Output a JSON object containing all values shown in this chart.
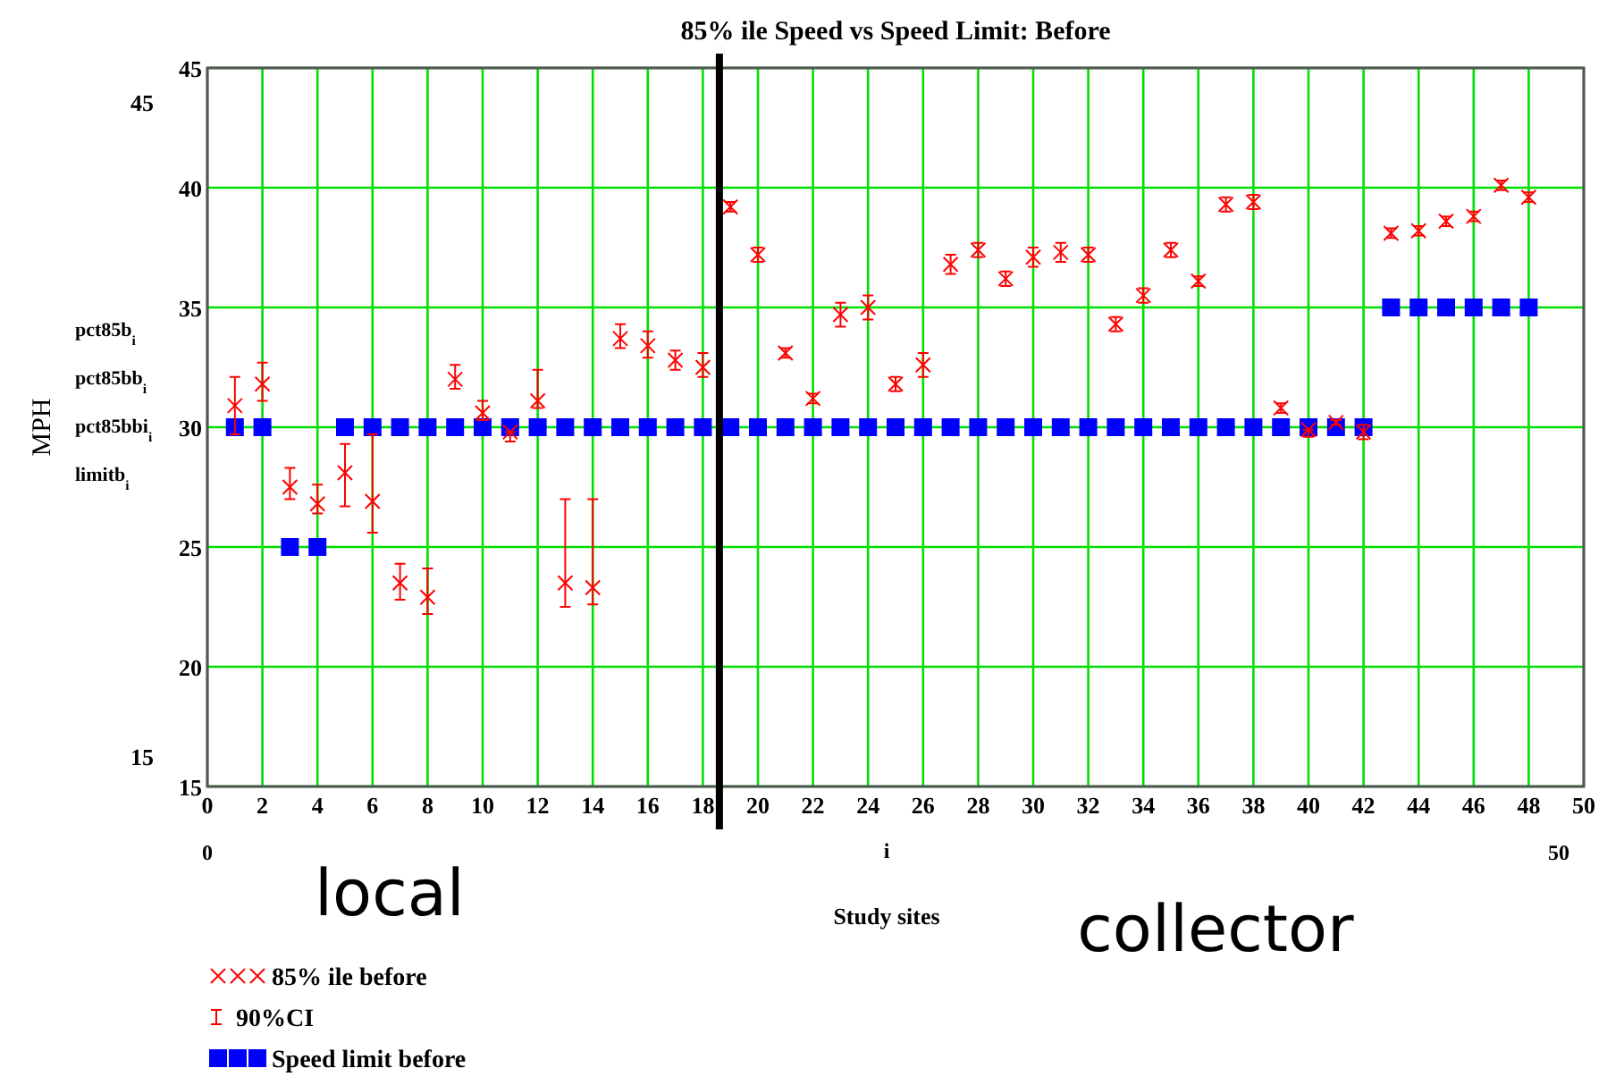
{
  "chart_data": {
    "type": "scatter",
    "title": "85% ile Speed vs Speed Limit: Before",
    "xlabel": "Study sites",
    "ylabel": "MPH",
    "x": [
      1,
      2,
      3,
      4,
      5,
      6,
      7,
      8,
      9,
      10,
      11,
      12,
      13,
      14,
      15,
      16,
      17,
      18,
      19,
      20,
      21,
      22,
      23,
      24,
      25,
      26,
      27,
      28,
      29,
      30,
      31,
      32,
      33,
      34,
      35,
      36,
      37,
      38,
      39,
      40,
      41,
      42,
      43,
      44,
      45,
      46,
      47,
      48
    ],
    "series": [
      {
        "name": "85% ile before",
        "color": "#ff0000",
        "marker": "cross",
        "values": [
          30.9,
          31.8,
          27.5,
          26.8,
          28.1,
          26.9,
          23.5,
          22.9,
          32.0,
          30.6,
          29.8,
          31.1,
          23.5,
          23.3,
          33.7,
          33.4,
          32.8,
          32.5,
          39.2,
          37.2,
          33.1,
          31.2,
          34.7,
          35.0,
          31.8,
          32.6,
          36.8,
          37.4,
          36.2,
          37.1,
          37.3,
          37.2,
          34.3,
          35.5,
          37.4,
          36.1,
          39.3,
          39.4,
          30.8,
          29.9,
          30.2,
          29.8,
          38.1,
          38.2,
          38.6,
          38.8,
          40.1,
          39.6
        ],
        "errors": [
          [
            29.7,
            32.1
          ],
          [
            31.1,
            32.7
          ],
          [
            27.0,
            28.3
          ],
          [
            26.4,
            27.6
          ],
          [
            26.7,
            29.3
          ],
          [
            25.6,
            29.7
          ],
          [
            22.8,
            24.3
          ],
          [
            22.2,
            24.1
          ],
          [
            31.6,
            32.6
          ],
          [
            30.3,
            31.1
          ],
          [
            29.4,
            29.8
          ],
          [
            30.8,
            32.4
          ],
          [
            22.5,
            27.0
          ],
          [
            22.6,
            27.0
          ],
          [
            33.3,
            34.3
          ],
          [
            32.9,
            34.0
          ],
          [
            32.4,
            33.2
          ],
          [
            32.1,
            33.1
          ],
          0.2,
          0.3,
          0.2,
          0.2,
          0.5,
          0.5,
          0.3,
          0.5,
          0.4,
          0.3,
          0.3,
          0.4,
          0.4,
          0.3,
          0.3,
          0.3,
          0.3,
          0.2,
          0.3,
          0.3,
          0.2,
          [
            29.6,
            29.9
          ],
          0.1,
          0.3,
          0.2,
          0.2,
          0.2,
          0.2,
          0.2,
          0.2
        ]
      },
      {
        "name": "Speed limit before",
        "color": "#0000ff",
        "marker": "square",
        "values": [
          30,
          30,
          25,
          25,
          30,
          30,
          30,
          30,
          30,
          30,
          30,
          30,
          30,
          30,
          30,
          30,
          30,
          30,
          30,
          30,
          30,
          30,
          30,
          30,
          30,
          30,
          30,
          30,
          30,
          30,
          30,
          30,
          30,
          30,
          30,
          30,
          30,
          30,
          30,
          30,
          30,
          30,
          35,
          35,
          35,
          35,
          35,
          35
        ]
      }
    ],
    "xlim": [
      0,
      50
    ],
    "xticks": [
      0,
      2,
      4,
      6,
      8,
      10,
      12,
      14,
      16,
      18,
      20,
      22,
      24,
      26,
      28,
      30,
      32,
      34,
      36,
      38,
      40,
      42,
      44,
      46,
      48,
      50
    ],
    "ylim": [
      15,
      45
    ],
    "yticks": [
      15,
      20,
      25,
      30,
      35,
      40,
      45
    ],
    "grid": true,
    "legend": "bottom left",
    "ref_lines": [
      {
        "axis": "x",
        "value": 18.6,
        "color": "#000000"
      }
    ],
    "annotations": [
      "local",
      "collector",
      "i",
      "0",
      "50",
      "45",
      "15",
      "90%CI",
      "pct85b$_{i}$",
      "pct85bb$_{i}$",
      "pct85bbi$_{i}$",
      "limitb$_{i}$"
    ]
  }
}
